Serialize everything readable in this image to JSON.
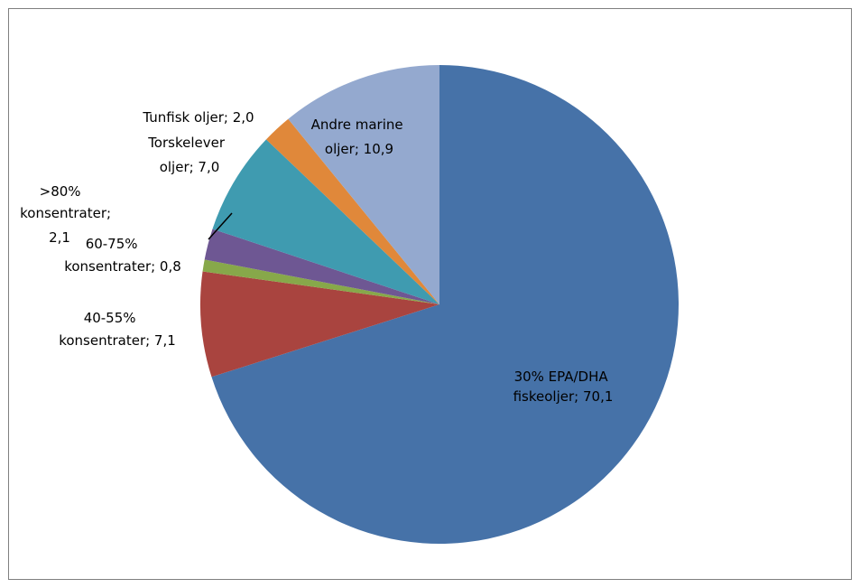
{
  "chart_data": {
    "type": "pie",
    "title": "",
    "slices": [
      {
        "label": "30% EPA/DHA fiskeoljer",
        "value": 70.1,
        "data_label": "30% EPA/DHA fiskeoljer; 70,1",
        "color": "#4672a8"
      },
      {
        "label": "40-55% konsentrater",
        "value": 7.1,
        "data_label": "40-55% konsentrater; 7,1",
        "color": "#a9443f"
      },
      {
        "label": "60-75% konsentrater",
        "value": 0.8,
        "data_label": "60-75% konsentrater; 0,8",
        "color": "#87a84a"
      },
      {
        "label": ">80% konsentrater",
        "value": 2.1,
        "data_label": ">80% konsentrater; 2,1",
        "color": "#6e5793"
      },
      {
        "label": "Torskelever oljer",
        "value": 7.0,
        "data_label": "Torskelever oljer; 7,0",
        "color": "#3f9bb0"
      },
      {
        "label": "Tunfisk oljer",
        "value": 2.0,
        "data_label": "Tunfisk oljer; 2,0",
        "color": "#e0883a"
      },
      {
        "label": "Andre marine oljer",
        "value": 10.9,
        "data_label": "Andre marine oljer; 10,9",
        "color": "#94a9cf"
      }
    ],
    "start_angle_deg": 0,
    "direction": "clockwise",
    "legend": "none"
  }
}
